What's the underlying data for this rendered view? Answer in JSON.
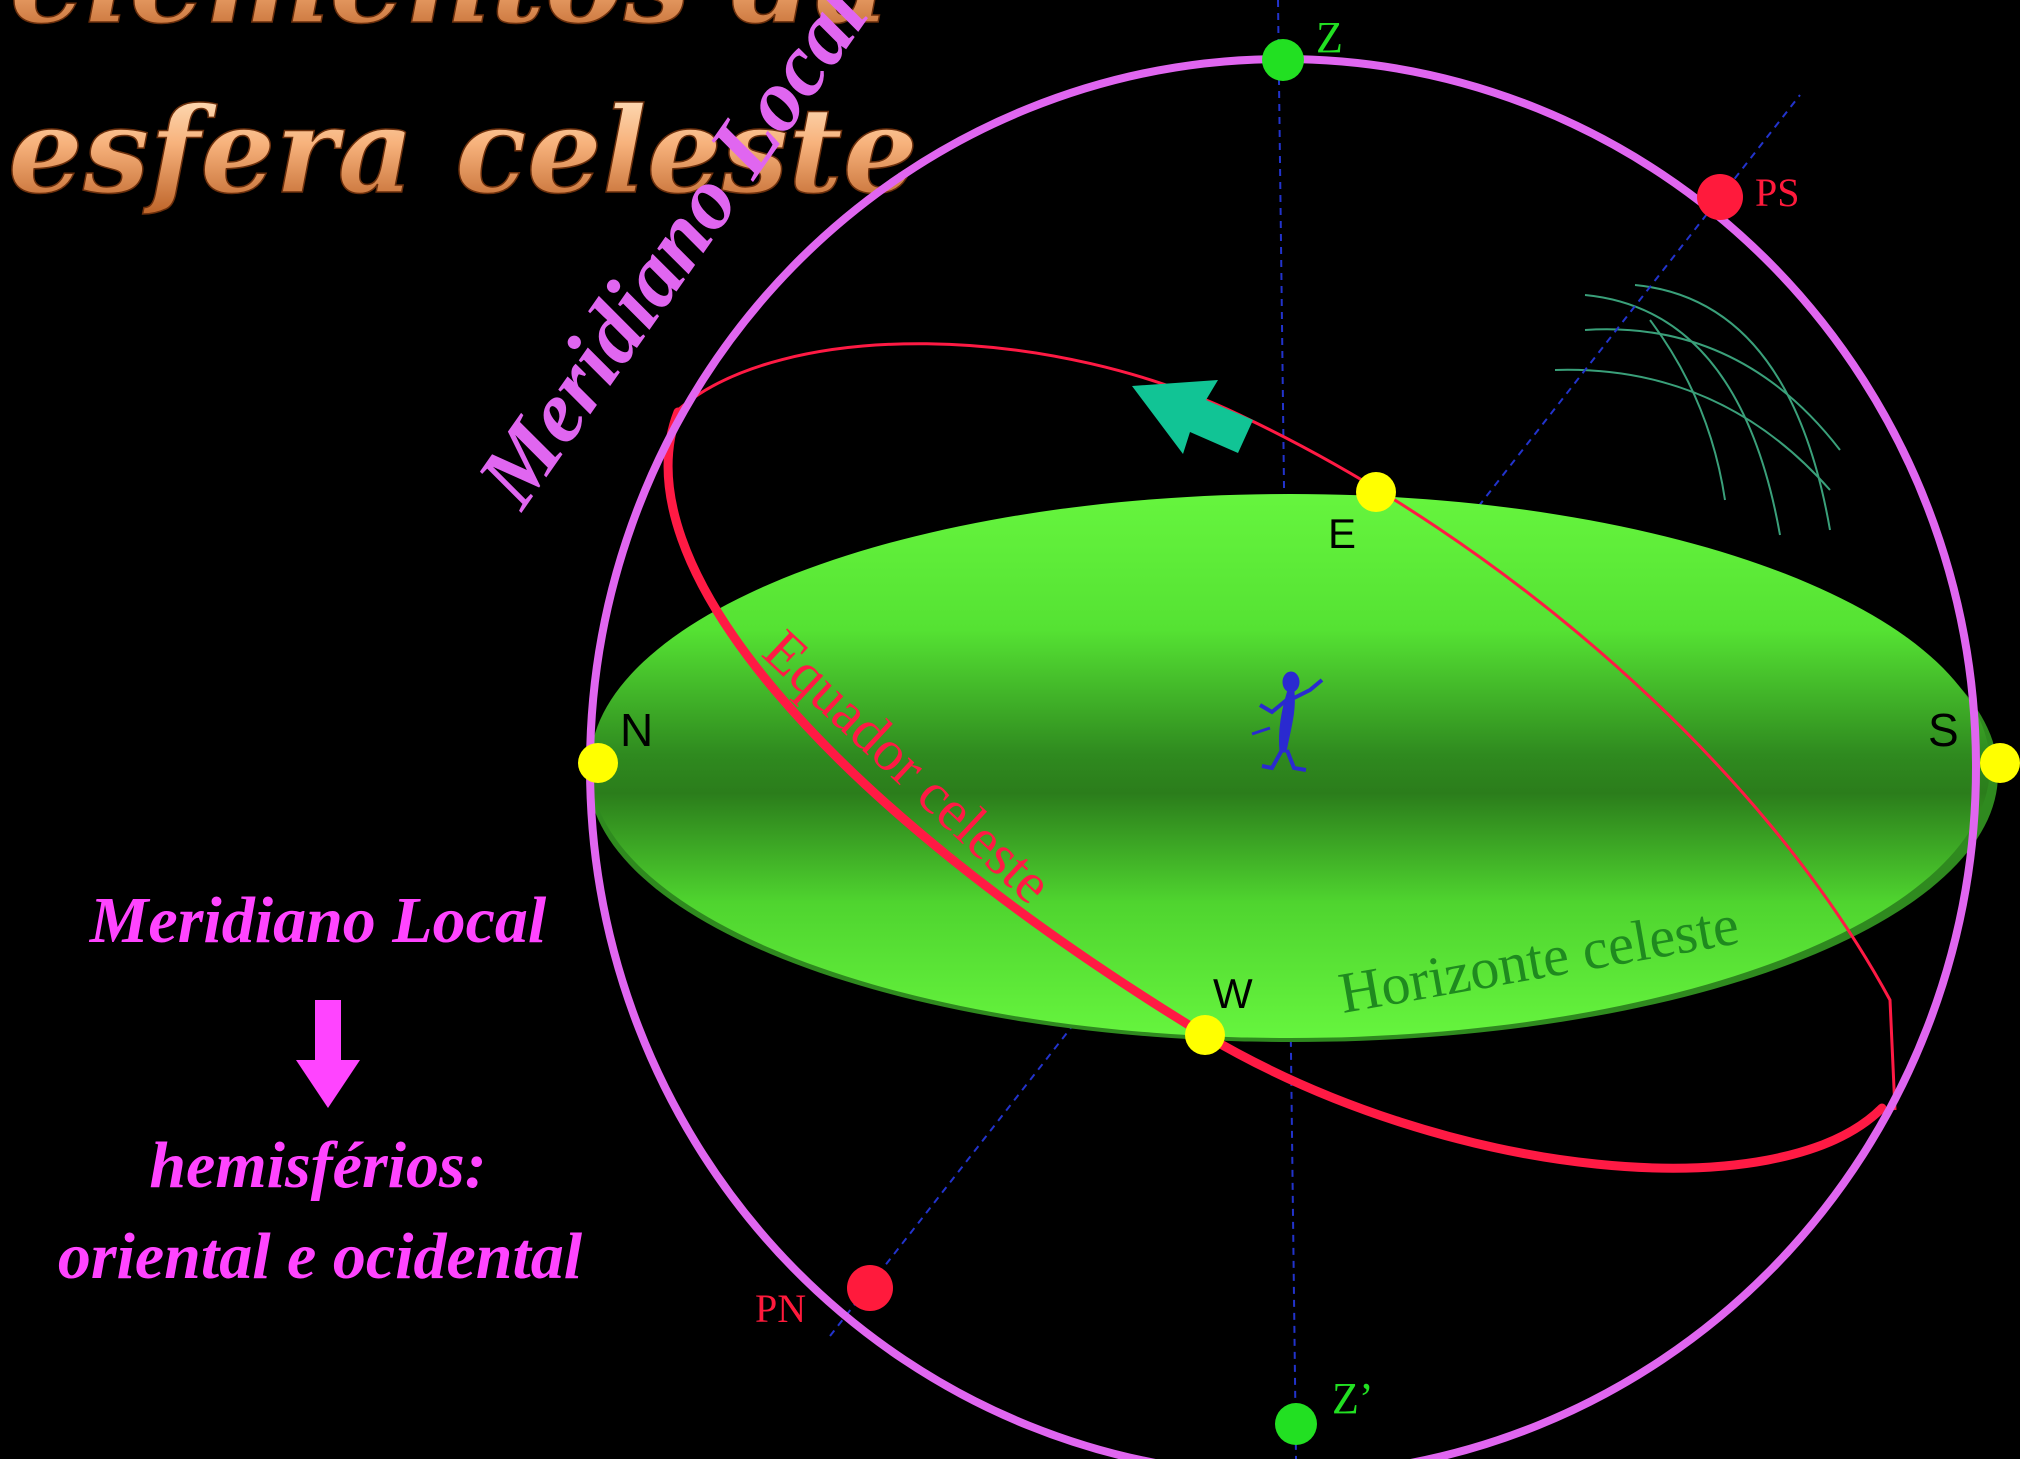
{
  "title": {
    "line1": "elementos da",
    "line2": "esfera celeste"
  },
  "labels": {
    "meridiano_arc": "Meridiano Local",
    "equador": "Equador celeste",
    "horizonte": "Horizonte celeste"
  },
  "points": {
    "zenith": "Z",
    "nadir": "Z’",
    "south_pole": "PS",
    "north_pole": "PN",
    "north": "N",
    "south": "S",
    "east": "E",
    "west": "W"
  },
  "side_panel": {
    "heading": "Meridiano Local",
    "line1": "hemisférios:",
    "line2": "oriental e ocidental"
  },
  "colors": {
    "background": "#000000",
    "meridian": "#e066f0",
    "equator": "#ff1a44",
    "horizon_light": "#5ef23a",
    "horizon_dark": "#2f7a1c",
    "horizon_label": "#1f8a1f",
    "zenith_points": "#22e022",
    "pole_points": "#ff1a3c",
    "cardinal_points": "#ffff00",
    "axis_lines": "#2233cc",
    "arrow": "#11c495",
    "side_text": "#ff44ff",
    "title_fill": "#f6b27a"
  },
  "icons": {
    "observer": "observer-figure-icon",
    "arrow": "rotation-arrow-icon",
    "down_arrow": "down-arrow-icon"
  }
}
